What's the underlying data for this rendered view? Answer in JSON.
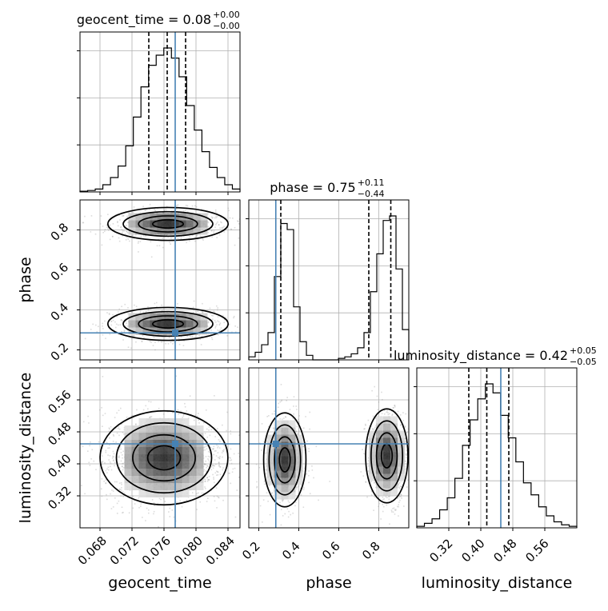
{
  "chart_data": {
    "type": "corner",
    "colors": {
      "truth": "#4682b4",
      "hist": "#000000",
      "grid": "#b0b0b0",
      "scatter": "#9a9a9a"
    },
    "parameters": [
      {
        "name": "geocent_time",
        "xlabel": "geocent_time",
        "range": [
          0.0655,
          0.0855
        ],
        "ticks": [
          "0.068",
          "0.072",
          "0.076",
          "0.080",
          "0.084"
        ],
        "tick_values": [
          0.068,
          0.072,
          0.076,
          0.08,
          0.084
        ],
        "title_prefix": "geocent_time = 0.08",
        "title_sup": "+0.00",
        "title_sub": "−0.00",
        "quantiles": [
          0.0741,
          0.0764,
          0.0787
        ],
        "truth": 0.0774
      },
      {
        "name": "phase",
        "xlabel": "phase",
        "ylabel": "phase",
        "range": [
          0.15,
          0.95
        ],
        "ticks": [
          "0.2",
          "0.4",
          "0.6",
          "0.8"
        ],
        "tick_values": [
          0.2,
          0.4,
          0.6,
          0.8
        ],
        "title_prefix": "phase = 0.75",
        "title_sup": "+0.11",
        "title_sub": "−0.44",
        "quantiles": [
          0.31,
          0.75,
          0.86
        ],
        "truth": 0.285
      },
      {
        "name": "luminosity_distance",
        "xlabel": "luminosity_distance",
        "ylabel": "luminosity_distance",
        "range": [
          0.24,
          0.64
        ],
        "ticks": [
          "0.32",
          "0.40",
          "0.48",
          "0.56"
        ],
        "tick_values": [
          0.32,
          0.4,
          0.48,
          0.56
        ],
        "title_prefix": "luminosity_distance = 0.42",
        "title_sup": "+0.05",
        "title_sub": "−0.05",
        "quantiles": [
          0.37,
          0.415,
          0.47
        ],
        "truth": 0.45
      }
    ],
    "histograms": {
      "geocent_time": [
        0.005,
        0.01,
        0.02,
        0.05,
        0.1,
        0.18,
        0.32,
        0.52,
        0.73,
        0.88,
        0.95,
        1.0,
        0.93,
        0.8,
        0.6,
        0.43,
        0.28,
        0.17,
        0.1,
        0.05,
        0.02
      ],
      "phase": [
        0.02,
        0.05,
        0.1,
        0.18,
        0.55,
        0.9,
        0.86,
        0.35,
        0.12,
        0.03,
        0,
        0,
        0,
        0,
        0.01,
        0.02,
        0.04,
        0.08,
        0.18,
        0.45,
        0.7,
        0.92,
        0.95,
        0.6,
        0.2
      ],
      "luminosity_distance": [
        0.01,
        0.03,
        0.06,
        0.12,
        0.2,
        0.33,
        0.55,
        0.72,
        0.86,
        0.96,
        0.9,
        0.75,
        0.6,
        0.44,
        0.3,
        0.22,
        0.14,
        0.08,
        0.04,
        0.02,
        0.01
      ]
    },
    "density_modes": {
      "phase_vs_geocent_time": [
        {
          "x": 0.0765,
          "y": 0.83,
          "sx": 0.0032,
          "sy": 0.035,
          "w": 0.55
        },
        {
          "x": 0.0765,
          "y": 0.33,
          "sx": 0.0032,
          "sy": 0.035,
          "w": 0.45
        }
      ],
      "luminosity_distance_vs_geocent_time": [
        {
          "x": 0.076,
          "y": 0.415,
          "sx": 0.0034,
          "sy": 0.05,
          "w": 1.0
        }
      ],
      "luminosity_distance_vs_phase": [
        {
          "x": 0.33,
          "y": 0.41,
          "sx": 0.045,
          "sy": 0.05,
          "w": 0.45
        },
        {
          "x": 0.84,
          "y": 0.42,
          "sx": 0.045,
          "sy": 0.05,
          "w": 0.55
        }
      ]
    }
  }
}
